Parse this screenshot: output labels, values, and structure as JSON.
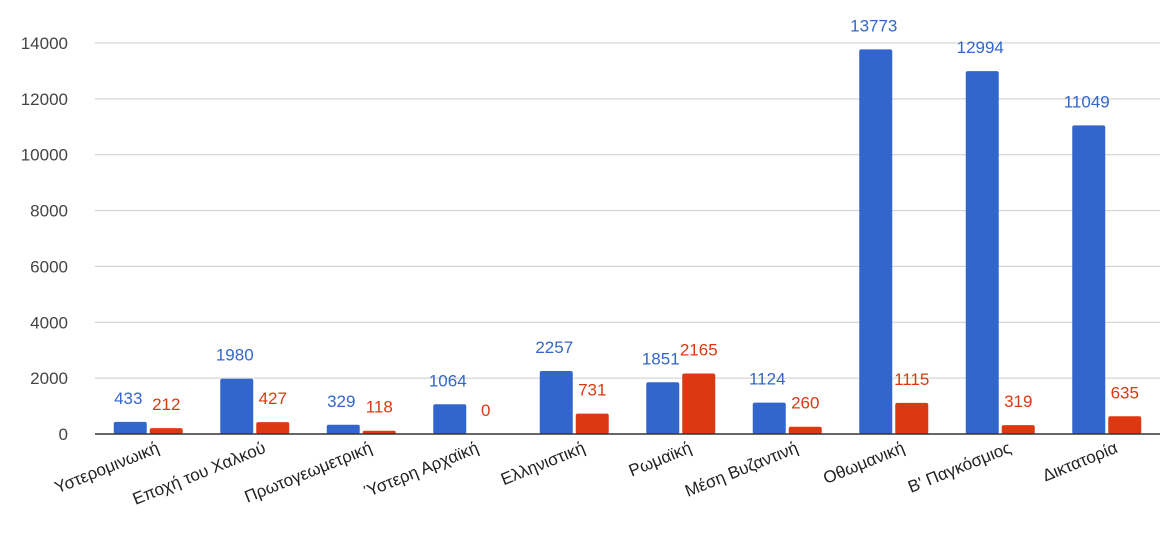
{
  "chart_data": {
    "type": "bar",
    "title": "",
    "xlabel": "",
    "ylabel": "",
    "ylim": [
      0,
      14000
    ],
    "y_ticks": [
      0,
      2000,
      4000,
      6000,
      8000,
      10000,
      12000,
      14000
    ],
    "grid": true,
    "legend": "none",
    "categories": [
      "Υστερομινωική",
      "Εποχή του Χαλκού",
      "Πρωτογεωμετρική",
      "Ύστερη Αρχαϊκή",
      "Ελληνιστική",
      "Ρωμαϊκή",
      "Μέση Βυζαντινή",
      "Οθωμανική",
      "Β' Παγκόσμιος",
      "Δικτατορία"
    ],
    "series": [
      {
        "color": "#3366cc",
        "values": [
          433,
          1980,
          329,
          1064,
          2257,
          1851,
          1124,
          13773,
          12994,
          11049
        ]
      },
      {
        "color": "#dc3912",
        "values": [
          212,
          427,
          118,
          0,
          731,
          2165,
          260,
          1115,
          319,
          635
        ]
      }
    ]
  }
}
